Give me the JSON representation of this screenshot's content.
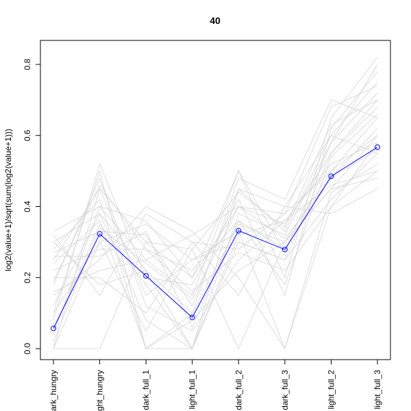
{
  "chart_data": {
    "type": "line",
    "title": "40",
    "xlabel": "",
    "ylabel": "log2(value+1)/sqrt(sum(log2(value+1)))",
    "categories": [
      "dark_hungry",
      "light_hungry",
      "dark_full_1",
      "light_full_1",
      "dark_full_2",
      "dark_full_3",
      "light_full_2",
      "light_full_3"
    ],
    "ylim": [
      0.0,
      0.8
    ],
    "yticks": [
      0.0,
      0.2,
      0.4,
      0.6,
      0.8
    ],
    "ytick_labels": [
      "0.0",
      "0.2",
      "0.4",
      "0.6",
      "0.8"
    ],
    "grid": false,
    "colors": {
      "highlight": "#0000FF",
      "background_lines": "#D3D3D3"
    },
    "series": [
      {
        "values": [
          0.057,
          0.323,
          0.205,
          0.088,
          0.332,
          0.279,
          0.485,
          0.567
        ],
        "color": "#0000FF",
        "markers": "open-circle"
      }
    ],
    "background_series_note": "",
    "background_series": [
      [
        0.3,
        0.38,
        0.22,
        0.1,
        0.35,
        0.3,
        0.45,
        0.6
      ],
      [
        0.25,
        0.45,
        0.3,
        0.2,
        0.4,
        0.35,
        0.55,
        0.7
      ],
      [
        0.1,
        0.5,
        0.0,
        0.0,
        0.45,
        0.4,
        0.6,
        0.75
      ],
      [
        0.0,
        0.3,
        0.35,
        0.25,
        0.3,
        0.25,
        0.42,
        0.55
      ],
      [
        0.2,
        0.2,
        0.1,
        0.3,
        0.28,
        0.38,
        0.5,
        0.65
      ],
      [
        0.33,
        0.4,
        0.25,
        0.15,
        0.5,
        0.2,
        0.65,
        0.82
      ],
      [
        0.15,
        0.25,
        0.4,
        0.33,
        0.2,
        0.0,
        0.4,
        0.5
      ],
      [
        0.05,
        0.35,
        0.18,
        0.0,
        0.38,
        0.32,
        0.58,
        0.72
      ],
      [
        0.0,
        0.0,
        0.3,
        0.28,
        0.0,
        0.3,
        0.45,
        0.48
      ],
      [
        0.28,
        0.42,
        0.0,
        0.1,
        0.48,
        0.42,
        0.7,
        0.65
      ],
      [
        0.18,
        0.48,
        0.12,
        0.05,
        0.25,
        0.36,
        0.52,
        0.58
      ],
      [
        0.22,
        0.28,
        0.28,
        0.22,
        0.36,
        0.28,
        0.48,
        0.62
      ],
      [
        0.08,
        0.52,
        0.2,
        0.18,
        0.42,
        0.15,
        0.62,
        0.78
      ],
      [
        0.32,
        0.15,
        0.38,
        0.3,
        0.15,
        0.4,
        0.38,
        0.45
      ],
      [
        0.12,
        0.38,
        0.08,
        0.0,
        0.3,
        0.25,
        0.55,
        0.68
      ],
      [
        0.27,
        0.33,
        0.32,
        0.12,
        0.45,
        0.33,
        0.6,
        0.55
      ],
      [
        0.0,
        0.45,
        0.15,
        0.25,
        0.33,
        0.0,
        0.44,
        0.52
      ],
      [
        0.16,
        0.22,
        0.25,
        0.32,
        0.4,
        0.38,
        0.68,
        0.74
      ],
      [
        0.24,
        0.36,
        0.0,
        0.08,
        0.22,
        0.3,
        0.5,
        0.6
      ],
      [
        0.04,
        0.4,
        0.36,
        0.2,
        0.5,
        0.27,
        0.58,
        0.8
      ],
      [
        0.3,
        0.18,
        0.22,
        0.0,
        0.32,
        0.36,
        0.46,
        0.5
      ],
      [
        0.19,
        0.46,
        0.28,
        0.16,
        0.27,
        0.22,
        0.4,
        0.58
      ],
      [
        0.1,
        0.3,
        0.05,
        0.28,
        0.44,
        0.34,
        0.63,
        0.7
      ],
      [
        0.26,
        0.26,
        0.33,
        0.06,
        0.36,
        0.18,
        0.54,
        0.66
      ],
      [
        0.02,
        0.34,
        0.24,
        0.14,
        0.4,
        0.31,
        0.48,
        0.56
      ]
    ]
  }
}
